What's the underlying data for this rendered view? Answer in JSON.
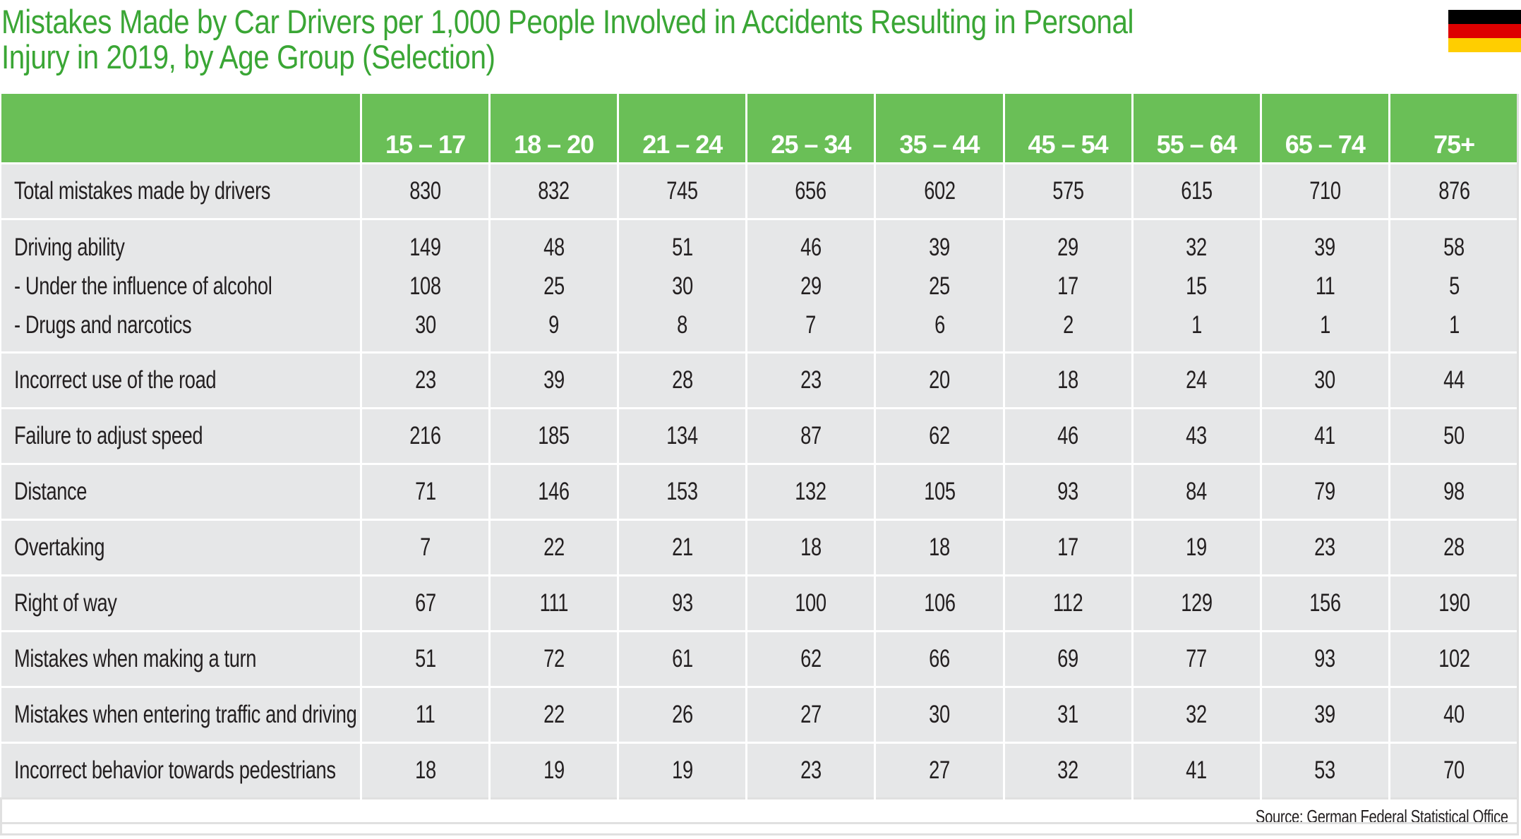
{
  "title_line1": "Mistakes Made by Car Drivers per 1,000 People Involved in Accidents Resulting in Personal",
  "title_line2": "Injury in 2019, by Age Group (Selection)",
  "flag_colors": [
    "#000000",
    "#dd0000",
    "#ffce00"
  ],
  "table": {
    "columns": [
      "15 – 17",
      "18 – 20",
      "21 – 24",
      "25 – 34",
      "35 – 44",
      "45 – 54",
      "55 – 64",
      "65 – 74",
      "75+"
    ],
    "rows": [
      {
        "label": "Total mistakes made by drivers",
        "values": [
          "830",
          "832",
          "745",
          "656",
          "602",
          "575",
          "615",
          "710",
          "876"
        ]
      },
      {
        "group": [
          {
            "label": "Driving ability",
            "values": [
              "149",
              "48",
              "51",
              "46",
              "39",
              "29",
              "32",
              "39",
              "58"
            ]
          },
          {
            "label": "- Under the influence of alcohol",
            "values": [
              "108",
              "25",
              "30",
              "29",
              "25",
              "17",
              "15",
              "11",
              "5"
            ]
          },
          {
            "label": "- Drugs and narcotics",
            "values": [
              "30",
              "9",
              "8",
              "7",
              "6",
              "2",
              "1",
              "1",
              "1"
            ]
          }
        ]
      },
      {
        "label": "Incorrect use of the road",
        "values": [
          "23",
          "39",
          "28",
          "23",
          "20",
          "18",
          "24",
          "30",
          "44"
        ]
      },
      {
        "label": "Failure to adjust speed",
        "values": [
          "216",
          "185",
          "134",
          "87",
          "62",
          "46",
          "43",
          "41",
          "50"
        ]
      },
      {
        "label": "Distance",
        "values": [
          "71",
          "146",
          "153",
          "132",
          "105",
          "93",
          "84",
          "79",
          "98"
        ]
      },
      {
        "label": "Overtaking",
        "values": [
          "7",
          "22",
          "21",
          "18",
          "18",
          "17",
          "19",
          "23",
          "28"
        ]
      },
      {
        "label": "Right of way",
        "values": [
          "67",
          "111",
          "93",
          "100",
          "106",
          "112",
          "129",
          "156",
          "190"
        ]
      },
      {
        "label": "Mistakes when making a turn",
        "values": [
          "51",
          "72",
          "61",
          "62",
          "66",
          "69",
          "77",
          "93",
          "102"
        ]
      },
      {
        "label": "Mistakes when entering traffic and driving off",
        "values": [
          "11",
          "22",
          "26",
          "27",
          "30",
          "31",
          "32",
          "39",
          "40"
        ]
      },
      {
        "label": "Incorrect behavior towards pedestrians",
        "values": [
          "18",
          "19",
          "19",
          "23",
          "27",
          "32",
          "41",
          "53",
          "70"
        ]
      }
    ]
  },
  "source": "Source: German Federal Statistical Office"
}
